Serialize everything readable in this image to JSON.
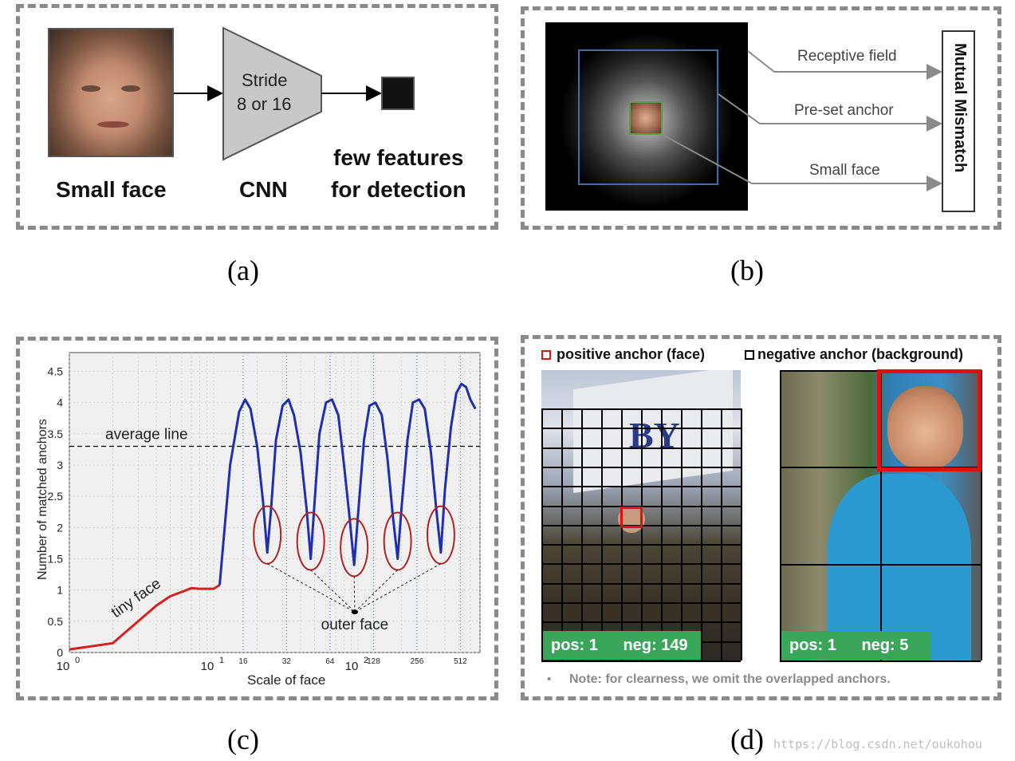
{
  "captions": {
    "a": "(a)",
    "b": "(b)",
    "c": "(c)",
    "d": "(d)"
  },
  "watermark": "https://blog.csdn.net/oukohou",
  "panel_a": {
    "small_face_label": "Small face",
    "cnn_text_line1": "Stride",
    "cnn_text_line2": "8 or 16",
    "cnn_label": "CNN",
    "few_features_line1": "few features",
    "few_features_line2": "for detection"
  },
  "panel_b": {
    "receptive_field": "Receptive field",
    "preset_anchor": "Pre-set  anchor",
    "small_face": "Small  face",
    "mutual_mismatch": "Mutual Mismatch",
    "colors": {
      "receptive_box": "#3a6fb0",
      "anchor_box": "#5a9a4a",
      "arrow": "#8a8a8a"
    }
  },
  "panel_c": {
    "annotation_tiny": "tiny face",
    "annotation_outer": "outer face",
    "annotation_average": "average line",
    "top_ticks": [
      "16",
      "32",
      "64",
      "128",
      "256",
      "512"
    ],
    "ellipse_label_color": "#b22222",
    "tiny_color": "#d62020",
    "main_color": "#1f2fb0"
  },
  "chart_data": {
    "type": "line",
    "title": "",
    "xlabel": "Scale of face",
    "ylabel": "Number of matched anchors",
    "x_scale": "log",
    "xlim": [
      1,
      700
    ],
    "ylim": [
      0,
      4.8
    ],
    "x_tick_labels": [
      {
        "base": "10",
        "exp": "0",
        "value": 1
      },
      {
        "base": "10",
        "exp": "1",
        "value": 10
      },
      {
        "base": "10",
        "exp": "2",
        "value": 100
      }
    ],
    "y_ticks": [
      0,
      0.5,
      1,
      1.5,
      2,
      2.5,
      3,
      3.5,
      4,
      4.5
    ],
    "y_tick_labels": [
      "0",
      "0.5",
      "1",
      "1.5",
      "2",
      "2.5",
      "3",
      "3.5",
      "4",
      "4.5"
    ],
    "average_line": 3.3,
    "grid": true,
    "series": [
      {
        "segment": "tiny",
        "x": [
          1,
          2,
          3,
          4,
          5,
          6,
          7,
          8,
          9,
          10,
          11
        ],
        "y": [
          0.05,
          0.15,
          0.5,
          0.75,
          0.9,
          0.97,
          1.03,
          1.02,
          1.02,
          1.02,
          1.08
        ]
      },
      {
        "segment": "main",
        "x": [
          11,
          13,
          15,
          16.5,
          18,
          20,
          22,
          23.5,
          25,
          27,
          30,
          33,
          36,
          40,
          44,
          47,
          50,
          54,
          60,
          66,
          73,
          80,
          87,
          94,
          100,
          110,
          120,
          132,
          146,
          160,
          174,
          188,
          200,
          220,
          240,
          265,
          290,
          320,
          348,
          375,
          400,
          440,
          480,
          520,
          560,
          600,
          650
        ],
        "y": [
          1.08,
          3.0,
          3.85,
          4.05,
          3.9,
          3.3,
          2.4,
          1.6,
          2.3,
          3.4,
          3.95,
          4.05,
          3.8,
          3.2,
          2.3,
          1.5,
          2.4,
          3.5,
          4.0,
          4.05,
          3.8,
          3.0,
          2.2,
          1.4,
          2.2,
          3.4,
          3.95,
          4.0,
          3.8,
          3.1,
          2.2,
          1.5,
          2.3,
          3.4,
          4.0,
          4.05,
          3.9,
          3.2,
          2.3,
          1.6,
          2.6,
          3.6,
          4.15,
          4.3,
          4.25,
          4.05,
          3.9
        ]
      }
    ]
  },
  "panel_d": {
    "legend_positive": "positive anchor (face)",
    "legend_negative": "negative anchor (background)",
    "left_pos": "pos: 1",
    "left_neg": "neg: 149",
    "right_pos": "pos: 1",
    "right_neg": "neg: 5",
    "note_bullet": "•",
    "note": "Note: for clearness,  we omit the overlapped anchors.",
    "colors": {
      "positive": "#e01010",
      "negative": "#000000",
      "label_bg": "#3aa65a"
    }
  }
}
